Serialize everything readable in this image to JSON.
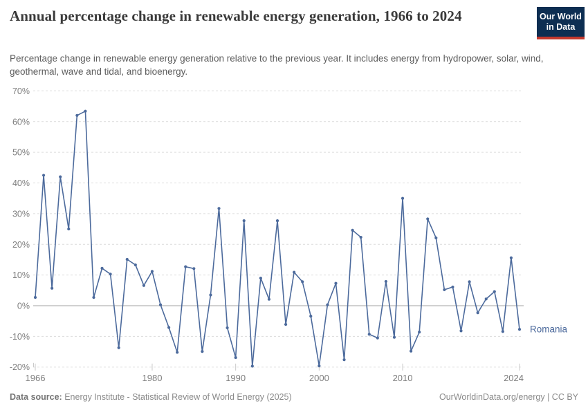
{
  "header": {
    "title": "Annual percentage change in renewable energy generation, 1966 to 2024",
    "subtitle": "Percentage change in renewable energy generation relative to the previous year. It includes energy from hydropower, solar, wind, geothermal, wave and tidal, and bioenergy.",
    "logo": {
      "line1": "Our World",
      "line2": "in Data"
    }
  },
  "colors": {
    "line": "#4C6A9C",
    "logo_bg": "#0d2e52",
    "logo_accent": "#c4392d",
    "grid": "#dcdcdc",
    "zero_line": "#a3a3a3",
    "axis_text": "#7d7d7d"
  },
  "chart_data": {
    "type": "line",
    "title": "Annual percentage change in renewable energy generation, 1966 to 2024",
    "series_label": "Romania",
    "ylabel": "",
    "xlabel": "",
    "ylim": [
      -20,
      70
    ],
    "ytick_step": 10,
    "ytick_suffix": "%",
    "grid": "dashed",
    "legend_position": "end-of-line",
    "xticks": [
      1966,
      1980,
      1990,
      2000,
      2010,
      2024
    ],
    "x": [
      1966,
      1967,
      1968,
      1969,
      1970,
      1971,
      1972,
      1973,
      1974,
      1975,
      1976,
      1977,
      1978,
      1979,
      1980,
      1981,
      1982,
      1983,
      1984,
      1985,
      1986,
      1987,
      1988,
      1989,
      1990,
      1991,
      1992,
      1993,
      1994,
      1995,
      1996,
      1997,
      1998,
      1999,
      2000,
      2001,
      2002,
      2003,
      2004,
      2005,
      2006,
      2007,
      2008,
      2009,
      2010,
      2011,
      2012,
      2013,
      2014,
      2015,
      2016,
      2017,
      2018,
      2019,
      2020,
      2021,
      2022,
      2023,
      2024
    ],
    "values": [
      2.7,
      42.5,
      5.7,
      42,
      25,
      62,
      63.4,
      2.7,
      12.2,
      10.3,
      -13.7,
      15.1,
      13.3,
      6.6,
      11.2,
      0.3,
      -7.1,
      -15.2,
      12.7,
      12.1,
      -14.9,
      3.5,
      31.7,
      -7.2,
      -16.9,
      27.7,
      -19.7,
      9,
      2.1,
      27.7,
      -6.1,
      10.9,
      7.8,
      -3.4,
      -19.6,
      0.3,
      7.3,
      -17.6,
      24.6,
      22.3,
      -9.3,
      -10.5,
      7.9,
      -10.3,
      35,
      -14.8,
      -8.6,
      28.3,
      22.1,
      5.2,
      6.1,
      -8.2,
      7.8,
      -2.3,
      2.2,
      4.6,
      -8.4,
      15.6,
      -7.7
    ]
  },
  "footer": {
    "source_label": "Data source:",
    "source_text": "Energy Institute - Statistical Review of World Energy (2025)",
    "right_text": "OurWorldinData.org/energy | CC BY"
  }
}
